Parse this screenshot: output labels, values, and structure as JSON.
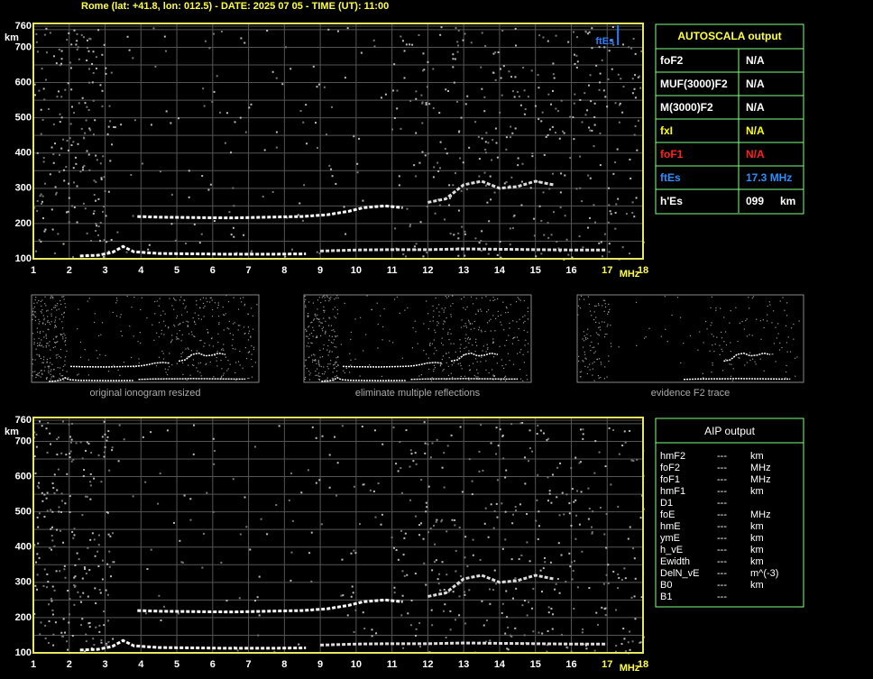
{
  "header": "Rome (lat: +41.8, lon: 012.5) - DATE: 2025 07 05 - TIME (UT): 11:00",
  "chart_data": [
    {
      "type": "ionogram",
      "xlim": [
        1,
        18
      ],
      "ylim": [
        100,
        760
      ],
      "xticks": [
        1,
        2,
        3,
        4,
        5,
        6,
        7,
        8,
        9,
        10,
        11,
        12,
        13,
        14,
        15,
        16,
        17,
        18
      ],
      "yticks": [
        100,
        200,
        300,
        400,
        500,
        600,
        700,
        760
      ],
      "yminor": [
        150,
        250,
        350,
        450,
        550,
        650,
        750
      ],
      "x_unit": "MHz",
      "y_unit": "km",
      "grid": true,
      "traces": [
        {
          "color": "#ffffff",
          "x": [
            2.3,
            2.8,
            3.2,
            3.5,
            3.8,
            4.5,
            5.5,
            6.5,
            7.5,
            8.6
          ],
          "y": [
            108,
            110,
            118,
            135,
            120,
            115,
            114,
            113,
            113,
            114
          ]
        },
        {
          "color": "#ffffff",
          "x": [
            3.9,
            4.5,
            5.5,
            6.5,
            7.5,
            8.5,
            9.2,
            9.8,
            10.2,
            10.8,
            11.3
          ],
          "y": [
            220,
            218,
            217,
            216,
            218,
            220,
            225,
            235,
            245,
            250,
            245
          ]
        },
        {
          "color": "#dddddd",
          "x": [
            12,
            12.5,
            13,
            13.5,
            14,
            14.5,
            15,
            15.5
          ],
          "y": [
            260,
            270,
            310,
            320,
            300,
            305,
            320,
            310
          ]
        },
        {
          "color": "#dddddd",
          "x": [
            9,
            10,
            11,
            12,
            13,
            14,
            15,
            16,
            17
          ],
          "y": [
            122,
            125,
            126,
            126,
            128,
            127,
            126,
            125,
            125
          ]
        }
      ],
      "markers": [
        {
          "label": "ftEs",
          "x": 17.3,
          "color": "#2a7fff"
        }
      ]
    },
    {
      "type": "ionogram",
      "xlim": [
        1,
        18
      ],
      "ylim": [
        100,
        760
      ],
      "xticks": [
        1,
        2,
        3,
        4,
        5,
        6,
        7,
        8,
        9,
        10,
        11,
        12,
        13,
        14,
        15,
        16,
        17,
        18
      ],
      "yticks": [
        100,
        200,
        300,
        400,
        500,
        600,
        700,
        760
      ],
      "yminor": [
        150,
        250,
        350,
        450,
        550,
        650,
        750
      ],
      "x_unit": "MHz",
      "y_unit": "km",
      "grid": true,
      "traces": [
        {
          "color": "#ffffff",
          "x": [
            2.3,
            2.8,
            3.2,
            3.5,
            3.8,
            4.5,
            5.5,
            6.5,
            7.5,
            8.6
          ],
          "y": [
            108,
            110,
            118,
            135,
            120,
            115,
            114,
            113,
            113,
            114
          ]
        },
        {
          "color": "#ffffff",
          "x": [
            3.9,
            4.5,
            5.5,
            6.5,
            7.5,
            8.5,
            9.2,
            9.8,
            10.2,
            10.8,
            11.3
          ],
          "y": [
            220,
            218,
            217,
            216,
            218,
            220,
            225,
            235,
            245,
            250,
            245
          ]
        },
        {
          "color": "#dddddd",
          "x": [
            12,
            12.5,
            13,
            13.5,
            14,
            14.5,
            15,
            15.5
          ],
          "y": [
            260,
            270,
            310,
            320,
            300,
            305,
            320,
            310
          ]
        },
        {
          "color": "#dddddd",
          "x": [
            9,
            10,
            11,
            12,
            13,
            14,
            15,
            16,
            17
          ],
          "y": [
            122,
            125,
            126,
            126,
            128,
            127,
            126,
            125,
            125
          ]
        }
      ]
    }
  ],
  "autoscala": {
    "title": "AUTOSCALA output",
    "rows": [
      {
        "label": "foF2",
        "value": "N/A",
        "color": "#ffffff"
      },
      {
        "label": "MUF(3000)F2",
        "value": "N/A",
        "color": "#ffffff"
      },
      {
        "label": "M(3000)F2",
        "value": "N/A",
        "color": "#ffffff"
      },
      {
        "label": "fxI",
        "value": "N/A",
        "color": "#ffff00"
      },
      {
        "label": "foF1",
        "value": "N/A",
        "color": "#ff2020"
      },
      {
        "label": "ftEs",
        "value": "17.3 MHz",
        "color": "#2a8fff"
      },
      {
        "label": "h'Es",
        "value": "099",
        "unit": "km",
        "color": "#ffffff"
      }
    ]
  },
  "thumbnails": [
    "original ionogram resized",
    "eliminate multiple reflections",
    "evidence F2 trace"
  ],
  "aip": {
    "title": "AIP output",
    "rows": [
      [
        "hmF2",
        "---",
        "km"
      ],
      [
        "foF2",
        "---",
        "MHz"
      ],
      [
        "foF1",
        "---",
        "MHz"
      ],
      [
        "hmF1",
        "---",
        "km"
      ],
      [
        "D1",
        "---"
      ],
      [
        "foE",
        "---",
        "MHz"
      ],
      [
        "hmE",
        "---",
        "km"
      ],
      [
        "ymE",
        "---",
        "km"
      ],
      [
        "h_vE",
        "---",
        "km"
      ],
      [
        "Ewidth",
        "---",
        "km"
      ],
      [
        "DelN_vE",
        "---",
        "m^(-3)"
      ],
      [
        "B0",
        "---",
        "km"
      ],
      [
        "B1",
        "---"
      ]
    ]
  }
}
